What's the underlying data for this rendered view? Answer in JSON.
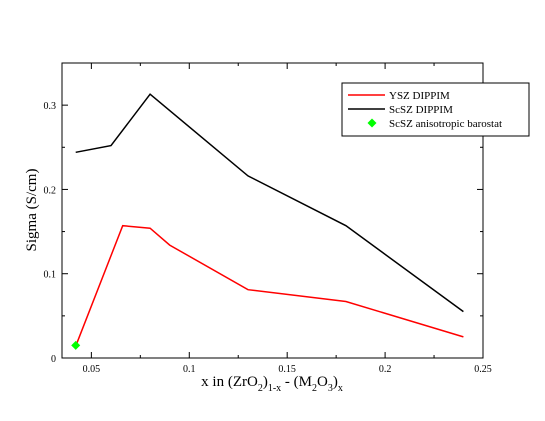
{
  "chart_data": {
    "type": "line",
    "xlabel": {
      "parts": [
        {
          "t": "x in (ZrO",
          "s": "n"
        },
        {
          "t": "2",
          "s": "sub"
        },
        {
          "t": ")",
          "s": "n"
        },
        {
          "t": "1-x",
          "s": "sub"
        },
        {
          "t": " - (M",
          "s": "n"
        },
        {
          "t": "2",
          "s": "sub"
        },
        {
          "t": "O",
          "s": "n"
        },
        {
          "t": "3",
          "s": "sub"
        },
        {
          "t": ")",
          "s": "n"
        },
        {
          "t": "x",
          "s": "sub"
        }
      ]
    },
    "ylabel": "Sigma (S/cm)",
    "xlim": [
      0.035,
      0.25
    ],
    "ylim": [
      0,
      0.35
    ],
    "xticks": [
      0.05,
      0.1,
      0.15,
      0.2,
      0.25
    ],
    "xtick_labels": [
      "0.05",
      "0.1",
      "0.15",
      "0.2",
      "0.25"
    ],
    "yticks": [
      0,
      0.1,
      0.2,
      0.3
    ],
    "ytick_labels": [
      "0",
      "0.1",
      "0.2",
      "0.3"
    ],
    "grid": false,
    "legend_position": "top-right",
    "series": [
      {
        "name": "YSZ DIPPIM",
        "color": "#ff0000",
        "marker": "none",
        "x": [
          0.042,
          0.066,
          0.08,
          0.09,
          0.13,
          0.18,
          0.24
        ],
        "y": [
          0.014,
          0.157,
          0.154,
          0.134,
          0.081,
          0.067,
          0.025
        ]
      },
      {
        "name": "ScSZ DIPPIM",
        "color": "#000000",
        "marker": "none",
        "x": [
          0.042,
          0.06,
          0.08,
          0.13,
          0.18,
          0.24
        ],
        "y": [
          0.244,
          0.252,
          0.313,
          0.216,
          0.157,
          0.055
        ]
      },
      {
        "name": "ScSZ anisotropic barostat",
        "color": "#00ff00",
        "marker": "diamond",
        "line": "none",
        "x": [
          0.042
        ],
        "y": [
          0.015
        ]
      }
    ]
  }
}
